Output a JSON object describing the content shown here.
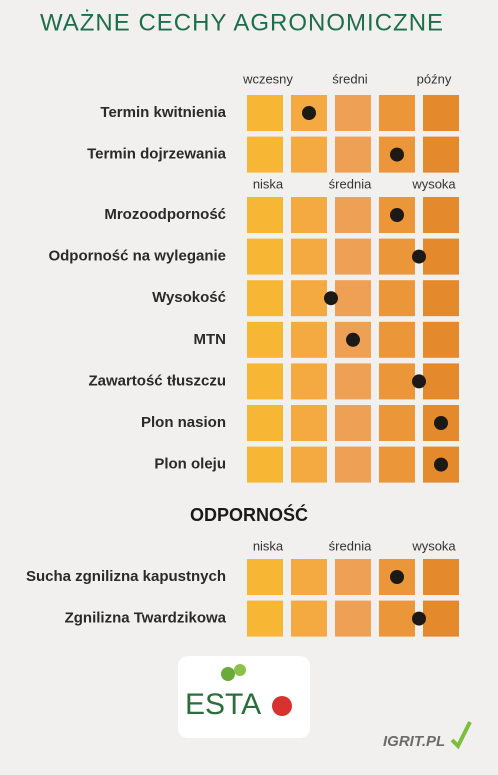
{
  "header": {
    "title": "WAŻNE CECHY AGRONOMICZNE"
  },
  "groups": [
    {
      "scale": [
        "wczesny",
        "średni",
        "późny"
      ],
      "rows": [
        {
          "label": "Termin kwitnienia",
          "value": 2
        },
        {
          "label": "Termin dojrzewania",
          "value": 4
        }
      ]
    },
    {
      "scale": [
        "niska",
        "średnia",
        "wysoka"
      ],
      "rows": [
        {
          "label": "Mrozoodporność",
          "value": 4
        },
        {
          "label": "Odporność na wyleganie",
          "value": 4.5
        },
        {
          "label": "Wysokość",
          "value": 2.5
        },
        {
          "label": "MTN",
          "value": 3
        },
        {
          "label": "Zawartość tłuszczu",
          "value": 4.5
        },
        {
          "label": "Plon nasion",
          "value": 5
        },
        {
          "label": "Plon oleju",
          "value": 5
        }
      ]
    },
    {
      "heading": "ODPORNOŚĆ",
      "scale": [
        "niska",
        "średnia",
        "wysoka"
      ],
      "rows": [
        {
          "label": "Sucha zgnilizna kapustnych",
          "value": 4
        },
        {
          "label": "Zgnilizna Twardzikowa",
          "value": 4.5
        }
      ]
    }
  ],
  "logos": {
    "esta": "ESTA",
    "igrit": "IGRIT.PL"
  }
}
